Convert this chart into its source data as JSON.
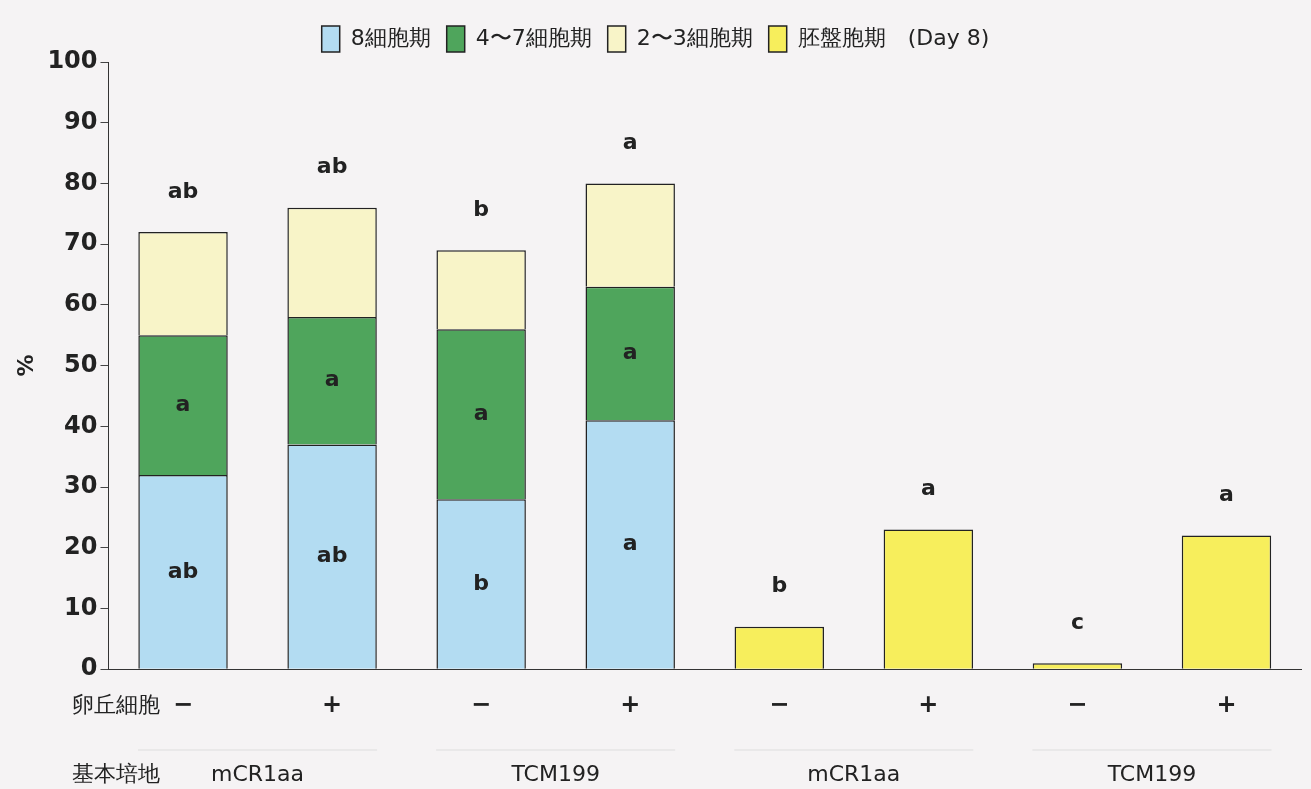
{
  "chart_data": {
    "type": "bar",
    "stacked": true,
    "ylabel": "%",
    "categories": [
      "−",
      "+",
      "−",
      "+",
      "−",
      "+",
      "−",
      "+"
    ],
    "series": [
      {
        "name": "8細胞期",
        "color": "#b3dcf2",
        "values": [
          32,
          37,
          28,
          41,
          null,
          null,
          null,
          null
        ],
        "value_labels": [
          "ab",
          "ab",
          "b",
          "a",
          null,
          null,
          null,
          null
        ]
      },
      {
        "name": "4〜7細胞期",
        "color": "#4fa55c",
        "values": [
          23,
          21,
          28,
          22,
          null,
          null,
          null,
          null
        ],
        "value_labels": [
          "a",
          "a",
          "a",
          "a",
          null,
          null,
          null,
          null
        ]
      },
      {
        "name": "2〜3細胞期",
        "color": "#f8f4c8",
        "values": [
          17,
          18,
          13,
          17,
          null,
          null,
          null,
          null
        ],
        "value_labels": [
          "ab",
          "ab",
          "b",
          "a",
          null,
          null,
          null,
          null
        ]
      },
      {
        "name": "胚盤胞期　(Day 8)",
        "color": "#f7ee5c",
        "values": [
          null,
          null,
          null,
          null,
          7,
          23,
          1,
          22
        ],
        "value_labels": [
          null,
          null,
          null,
          null,
          "b",
          "a",
          "c",
          "a"
        ]
      }
    ],
    "ylim": [
      0,
      100
    ],
    "yticks": [
      0,
      10,
      20,
      30,
      40,
      50,
      60,
      70,
      80,
      90,
      100
    ],
    "grid": false,
    "legend": "top",
    "annotations": [
      "卵丘細胞",
      "基本培地",
      "mCR1aa",
      "TCM199",
      "mCR1aa",
      "TCM199"
    ]
  }
}
